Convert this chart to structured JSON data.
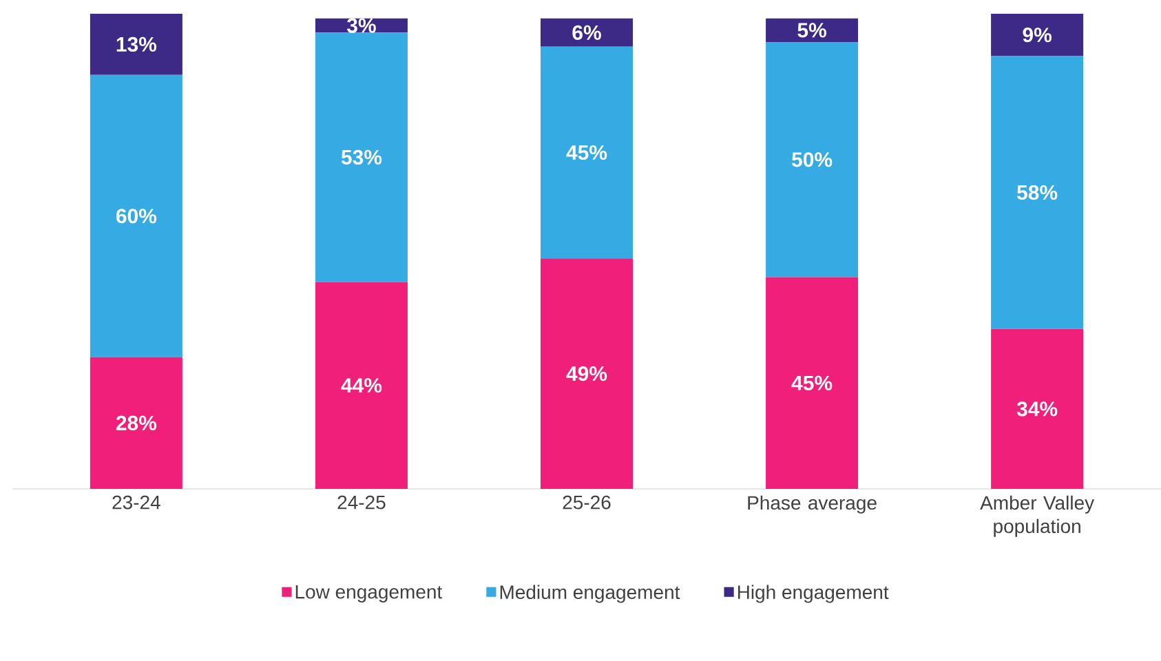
{
  "chart_data": {
    "type": "bar",
    "stacked": true,
    "legend": "bottom",
    "categories": [
      "23-24",
      "24-25",
      "25-26",
      "Phase average",
      "Amber Valley population"
    ],
    "series": [
      {
        "name": "Low engagement",
        "color": "#f0207a",
        "values": [
          28,
          44,
          49,
          45,
          34
        ],
        "value_labels": [
          "28%",
          "44%",
          "49%",
          "45%",
          "34%"
        ]
      },
      {
        "name": "Medium engagement",
        "color": "#36aae2",
        "values": [
          60,
          53,
          45,
          50,
          58
        ],
        "value_labels": [
          "60%",
          "53%",
          "45%",
          "50%",
          "58%"
        ]
      },
      {
        "name": "High engagement",
        "color": "#3d2a87",
        "values": [
          13,
          3,
          6,
          5,
          9
        ],
        "value_labels": [
          "13%",
          "3%",
          "6%",
          "5%",
          "9%"
        ]
      }
    ]
  }
}
